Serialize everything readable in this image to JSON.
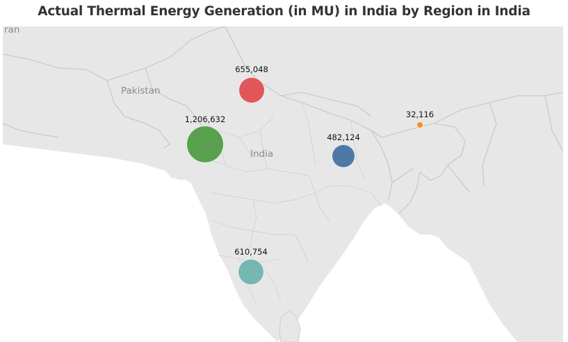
{
  "title": "Actual Thermal Energy Generation (in MU) in India by Region in India",
  "map": {
    "place_labels": {
      "iran": "ran",
      "pakistan": "Pakistan",
      "india": "India"
    },
    "regions": [
      {
        "label": "655,048",
        "value": 655048,
        "color": "#e15759"
      },
      {
        "label": "1,206,632",
        "value": 1206632,
        "color": "#59a14f"
      },
      {
        "label": "482,124",
        "value": 482124,
        "color": "#4e79a7"
      },
      {
        "label": "32,116",
        "value": 32116,
        "color": "#f28e2b"
      },
      {
        "label": "610,754",
        "value": 610754,
        "color": "#76b7b2"
      }
    ]
  }
}
